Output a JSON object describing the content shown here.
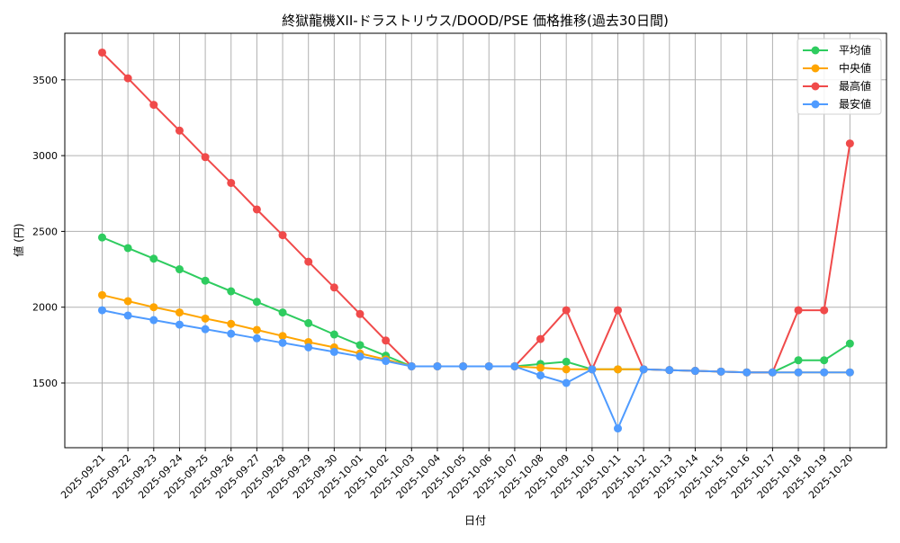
{
  "chart_data": {
    "type": "line",
    "title": "終獄龍機XII-ドラストリウス/DOOD/PSE 価格推移(過去30日間)",
    "xlabel": "日付",
    "ylabel": "値 (円)",
    "ylim": [
      1100,
      3800
    ],
    "yticks": [
      1500,
      2000,
      2500,
      3000,
      3500
    ],
    "grid": true,
    "legend_position": "upper right",
    "x": [
      "2025-09-21",
      "2025-09-22",
      "2025-09-23",
      "2025-09-24",
      "2025-09-25",
      "2025-09-26",
      "2025-09-27",
      "2025-09-28",
      "2025-09-29",
      "2025-09-30",
      "2025-10-01",
      "2025-10-02",
      "2025-10-03",
      "2025-10-04",
      "2025-10-05",
      "2025-10-06",
      "2025-10-07",
      "2025-10-08",
      "2025-10-09",
      "2025-10-10",
      "2025-10-11",
      "2025-10-12",
      "2025-10-13",
      "2025-10-14",
      "2025-10-15",
      "2025-10-16",
      "2025-10-17",
      "2025-10-18",
      "2025-10-19",
      "2025-10-20"
    ],
    "series": [
      {
        "name": "平均値",
        "color": "#2ecc5f",
        "values": [
          2460,
          2390,
          2320,
          2250,
          2175,
          2105,
          2035,
          1965,
          1895,
          1820,
          1750,
          1680,
          1610,
          1610,
          1610,
          1610,
          1610,
          1625,
          1640,
          1590,
          1590,
          1590,
          1585,
          1580,
          1575,
          1570,
          1570,
          1650,
          1650,
          1760
        ]
      },
      {
        "name": "中央値",
        "color": "#ffa500",
        "values": [
          2080,
          2040,
          2000,
          1965,
          1925,
          1890,
          1850,
          1810,
          1770,
          1735,
          1695,
          1655,
          1610,
          1610,
          1610,
          1610,
          1610,
          1600,
          1590,
          1590,
          1590,
          1590,
          1585,
          1580,
          1575,
          1570,
          1570,
          1570,
          1570,
          1570
        ]
      },
      {
        "name": "最高値",
        "color": "#f04a4a",
        "values": [
          3680,
          3510,
          3335,
          3165,
          2990,
          2820,
          2645,
          2475,
          2300,
          2130,
          1955,
          1780,
          1610,
          1610,
          1610,
          1610,
          1610,
          1790,
          1980,
          1590,
          1980,
          1590,
          1585,
          1580,
          1575,
          1570,
          1570,
          1980,
          1980,
          3080
        ]
      },
      {
        "name": "最安値",
        "color": "#4f9bff",
        "values": [
          1980,
          1945,
          1915,
          1885,
          1855,
          1825,
          1795,
          1765,
          1735,
          1705,
          1675,
          1645,
          1610,
          1610,
          1610,
          1610,
          1610,
          1550,
          1500,
          1590,
          1200,
          1590,
          1585,
          1580,
          1575,
          1570,
          1570,
          1570,
          1570,
          1570
        ]
      }
    ]
  }
}
